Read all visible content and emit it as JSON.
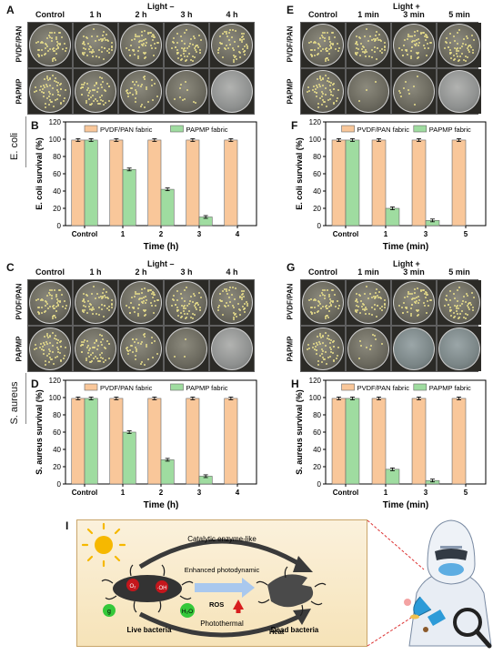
{
  "panel_letters": [
    "A",
    "B",
    "C",
    "D",
    "E",
    "F",
    "G",
    "H",
    "I"
  ],
  "light_minus": "Light –",
  "light_plus": "Light +",
  "dark_times": [
    "Control",
    "1 h",
    "2 h",
    "3 h",
    "4 h"
  ],
  "light_times": [
    "Control",
    "1 min",
    "3 min",
    "5 min"
  ],
  "row_labels": {
    "top": "PVDF/PAN",
    "bottom": "PAPMP"
  },
  "species": {
    "ecoli": "E. coli",
    "saureus": "S. aureus"
  },
  "legend": {
    "series1": "PVDF/PAN fabric",
    "series2": "PAPMP fabric"
  },
  "colors": {
    "series1": "#f9c79a",
    "series2": "#9fdca0"
  },
  "chart_data": [
    {
      "panel": "B",
      "type": "bar",
      "categories": [
        "Control",
        "1",
        "2",
        "3",
        "4"
      ],
      "xlabel": "Time (h)",
      "ylabel": "E. coli survival (%)",
      "ylim": [
        0,
        120
      ],
      "yticks": [
        0,
        20,
        40,
        60,
        80,
        100,
        120
      ],
      "series": [
        {
          "name": "PVDF/PAN fabric",
          "values": [
            99,
            99,
            99,
            99,
            99
          ]
        },
        {
          "name": "PAPMP fabric",
          "values": [
            99,
            65,
            42,
            10,
            null
          ]
        }
      ]
    },
    {
      "panel": "D",
      "type": "bar",
      "categories": [
        "Control",
        "1",
        "2",
        "3",
        "4"
      ],
      "xlabel": "Time (h)",
      "ylabel": "S. aureus survival (%)",
      "ylim": [
        0,
        120
      ],
      "yticks": [
        0,
        20,
        40,
        60,
        80,
        100,
        120
      ],
      "series": [
        {
          "name": "PVDF/PAN fabric",
          "values": [
            99,
            99,
            99,
            99,
            99
          ]
        },
        {
          "name": "PAPMP fabric",
          "values": [
            99,
            60,
            28,
            9,
            null
          ]
        }
      ]
    },
    {
      "panel": "F",
      "type": "bar",
      "categories": [
        "Control",
        "1",
        "3",
        "5"
      ],
      "xlabel": "Time (min)",
      "ylabel": "E. coli survival (%)",
      "ylim": [
        0,
        120
      ],
      "yticks": [
        0,
        20,
        40,
        60,
        80,
        100,
        120
      ],
      "series": [
        {
          "name": "PVDF/PAN fabric",
          "values": [
            99,
            99,
            99,
            99
          ]
        },
        {
          "name": "PAPMP fabric",
          "values": [
            99,
            20,
            6,
            null
          ]
        }
      ]
    },
    {
      "panel": "H",
      "type": "bar",
      "categories": [
        "Control",
        "1",
        "3",
        "5"
      ],
      "xlabel": "Time (min)",
      "ylabel": "S. aureus survival (%)",
      "ylim": [
        0,
        120
      ],
      "yticks": [
        0,
        20,
        40,
        60,
        80,
        100,
        120
      ],
      "series": [
        {
          "name": "PVDF/PAN fabric",
          "values": [
            99,
            99,
            99,
            99
          ]
        },
        {
          "name": "PAPMP fabric",
          "values": [
            99,
            17,
            4,
            null
          ]
        }
      ]
    }
  ],
  "schematic": {
    "top_label": "Catalytic enzyme-like",
    "middle_label": "Enhanced photodynamic",
    "ros_label": "ROS",
    "left_caption": "Live bacteria",
    "bottom_label": "Photothermal",
    "heat_label": "Heat",
    "right_caption": "Dead bacteria",
    "chem_o2": "O₂",
    "chem_oh": "·OH",
    "chem_h2o": "H₂O",
    "chem_left": "g"
  }
}
